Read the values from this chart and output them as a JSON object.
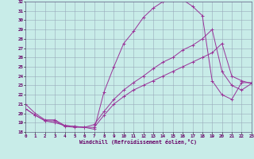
{
  "xlabel": "Windchill (Refroidissement éolien,°C)",
  "bg_color": "#c8ece8",
  "line_color": "#993399",
  "grid_color": "#99aabb",
  "ylim": [
    18,
    32
  ],
  "xlim": [
    0,
    23
  ],
  "yticks": [
    18,
    19,
    20,
    21,
    22,
    23,
    24,
    25,
    26,
    27,
    28,
    29,
    30,
    31,
    32
  ],
  "xticks": [
    0,
    1,
    2,
    3,
    4,
    5,
    6,
    7,
    8,
    9,
    10,
    11,
    12,
    13,
    14,
    15,
    16,
    17,
    18,
    19,
    20,
    21,
    22,
    23
  ],
  "line1_x": [
    0,
    1,
    2,
    3,
    4,
    5,
    6,
    7,
    8,
    9,
    10,
    11,
    12,
    13,
    14,
    15,
    16,
    17,
    18,
    19,
    20,
    21,
    22,
    23
  ],
  "line1_y": [
    21.0,
    20.0,
    19.3,
    19.3,
    18.7,
    18.6,
    18.5,
    18.3,
    22.3,
    25.0,
    27.5,
    28.8,
    30.3,
    31.3,
    32.0,
    32.2,
    32.2,
    31.5,
    30.5,
    23.5,
    22.0,
    21.5,
    23.3,
    23.3
  ],
  "line2_x": [
    0,
    1,
    2,
    3,
    4,
    5,
    6,
    7,
    8,
    9,
    10,
    11,
    12,
    13,
    14,
    15,
    16,
    17,
    18,
    19,
    20,
    21,
    22,
    23
  ],
  "line2_y": [
    20.5,
    19.8,
    19.2,
    19.2,
    18.6,
    18.5,
    18.5,
    18.8,
    20.2,
    21.5,
    22.5,
    23.3,
    24.0,
    24.8,
    25.5,
    26.0,
    26.8,
    27.3,
    28.0,
    29.0,
    24.5,
    23.0,
    22.5,
    23.2
  ],
  "line3_x": [
    0,
    1,
    2,
    3,
    4,
    5,
    6,
    7,
    8,
    9,
    10,
    11,
    12,
    13,
    14,
    15,
    16,
    17,
    18,
    19,
    20,
    21,
    22,
    23
  ],
  "line3_y": [
    20.5,
    19.8,
    19.2,
    19.0,
    18.7,
    18.6,
    18.5,
    18.5,
    19.8,
    21.0,
    21.8,
    22.5,
    23.0,
    23.5,
    24.0,
    24.5,
    25.0,
    25.5,
    26.0,
    26.5,
    27.5,
    24.0,
    23.5,
    23.2
  ]
}
